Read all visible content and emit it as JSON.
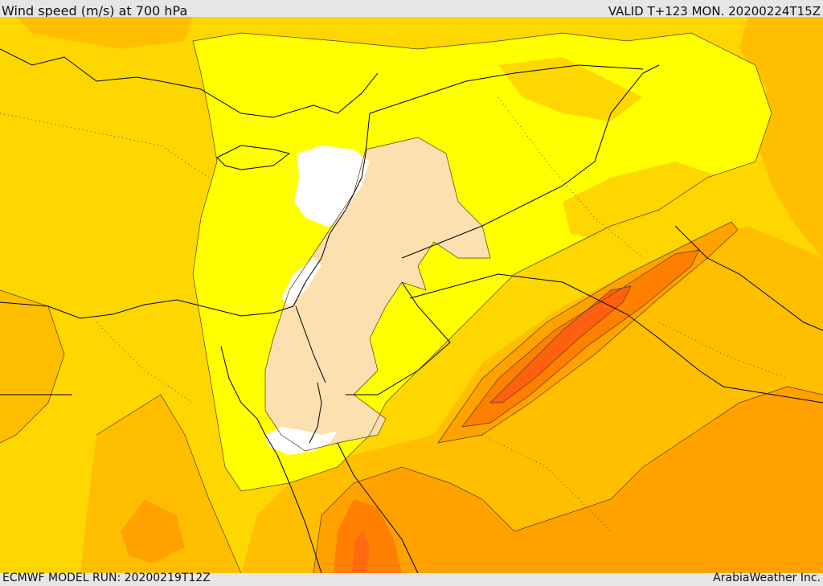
{
  "header": {
    "title": "Wind speed (m/s) at 700 hPa",
    "valid_time": "VALID T+123 MON. 20200224T15Z"
  },
  "footer": {
    "model_run": "ECMWF MODEL RUN: 20200219T12Z",
    "credit": "ArabiaWeather Inc."
  },
  "colors": {
    "frame_bg": "#e6e6e6",
    "calm_white": "#ffffff",
    "light_beige": "#fde0b0",
    "bright_yellow": "#ffff00",
    "golden_yellow": "#ffd700",
    "amber": "#ffbf00",
    "orange": "#ffa200",
    "dark_orange": "#ff8000",
    "red_orange": "#ff6010",
    "border_line": "#000000"
  }
}
